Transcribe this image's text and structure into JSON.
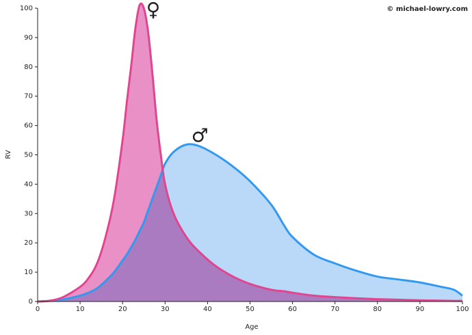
{
  "chart_data": {
    "type": "area",
    "copyright": "© michael-lowry.com",
    "x_label": "Age",
    "y_label": "RV",
    "x": [
      0,
      3,
      6,
      10,
      12,
      14,
      16,
      18,
      20,
      21,
      22,
      23,
      24,
      25,
      26,
      27,
      28,
      29,
      30,
      32,
      35,
      38,
      42,
      46,
      50,
      55,
      58,
      60,
      65,
      70,
      75,
      80,
      85,
      90,
      95,
      98,
      100
    ],
    "series": [
      {
        "name": "♂",
        "color": "#3399ee",
        "fill": "#bad8f7",
        "values": [
          0,
          0.2,
          0.7,
          2,
          3,
          4.5,
          7,
          10,
          14,
          16,
          18.5,
          21,
          24,
          27,
          31,
          35,
          39,
          43,
          47,
          51,
          53.5,
          53,
          50,
          46,
          41,
          33,
          26,
          22,
          16,
          13,
          10.5,
          8.5,
          7.5,
          6.5,
          5,
          4,
          2
        ]
      },
      {
        "name": "♀",
        "color": "#e0468f",
        "fill": "#e991c6",
        "values": [
          0,
          0.3,
          1.5,
          5,
          8,
          13,
          22,
          35,
          55,
          68,
          80,
          93,
          101,
          100,
          92,
          78,
          62,
          50,
          40,
          30,
          22,
          17,
          12,
          8.5,
          6,
          4,
          3.5,
          3,
          2,
          1.5,
          1.1,
          0.8,
          0.6,
          0.4,
          0.3,
          0.2,
          0.2
        ]
      }
    ],
    "xlim": [
      0,
      100
    ],
    "ylim": [
      0,
      100
    ],
    "xticks": [
      0,
      10,
      20,
      30,
      40,
      50,
      60,
      70,
      80,
      90,
      100
    ],
    "yticks": [
      0,
      10,
      20,
      30,
      40,
      50,
      60,
      70,
      80,
      90,
      100
    ]
  }
}
